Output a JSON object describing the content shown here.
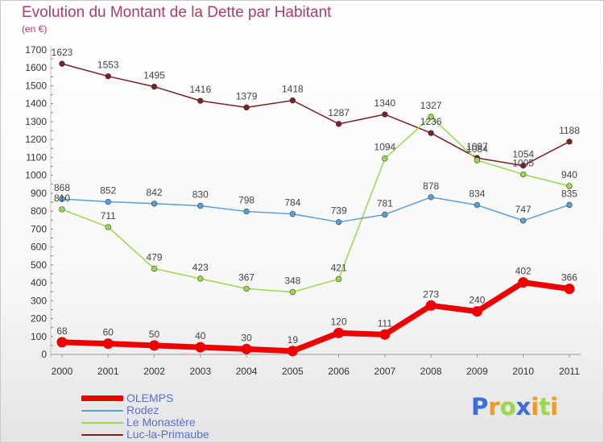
{
  "chart_data": {
    "type": "line",
    "title": "Evolution du Montant de la Dette par Habitant",
    "subtitle": "(en €)",
    "x": [
      "2000",
      "2001",
      "2002",
      "2003",
      "2004",
      "2005",
      "2006",
      "2007",
      "2008",
      "2009",
      "2010",
      "2011"
    ],
    "ylim": [
      0,
      1700
    ],
    "yticks": [
      0,
      100,
      200,
      300,
      400,
      500,
      600,
      700,
      800,
      900,
      1000,
      1100,
      1200,
      1300,
      1400,
      1500,
      1600,
      1700
    ],
    "grid": false,
    "legend_position": "bottom-left",
    "series": [
      {
        "name": "OLEMPS",
        "color": "#ee0000",
        "thick": true,
        "values": [
          68,
          60,
          50,
          40,
          30,
          19,
          120,
          111,
          273,
          240,
          402,
          366
        ]
      },
      {
        "name": "Rodez",
        "color": "#5a9fd4",
        "thick": false,
        "values": [
          868,
          852,
          842,
          830,
          798,
          784,
          739,
          781,
          878,
          834,
          747,
          835
        ]
      },
      {
        "name": "Le Monastère",
        "color": "#9ad84a",
        "thick": false,
        "values": [
          810,
          711,
          479,
          423,
          367,
          348,
          421,
          1094,
          1327,
          1084,
          1005,
          940
        ]
      },
      {
        "name": "Luc-la-Primaube",
        "color": "#7a1f24",
        "thick": false,
        "values": [
          1623,
          1553,
          1495,
          1416,
          1379,
          1418,
          1287,
          1340,
          1236,
          1097,
          1054,
          1188
        ]
      }
    ]
  },
  "logo": {
    "letters": [
      {
        "ch": "P",
        "color": "#3b6fd4"
      },
      {
        "ch": "r",
        "color": "#f29a1f"
      },
      {
        "ch": "o",
        "color": "#9ad84a"
      },
      {
        "ch": "x",
        "color": "#3b6fd4"
      },
      {
        "ch": "i",
        "color": "#f29a1f"
      },
      {
        "ch": "t",
        "color": "#9ad84a"
      },
      {
        "ch": "i",
        "color": "#f29a1f"
      }
    ]
  }
}
